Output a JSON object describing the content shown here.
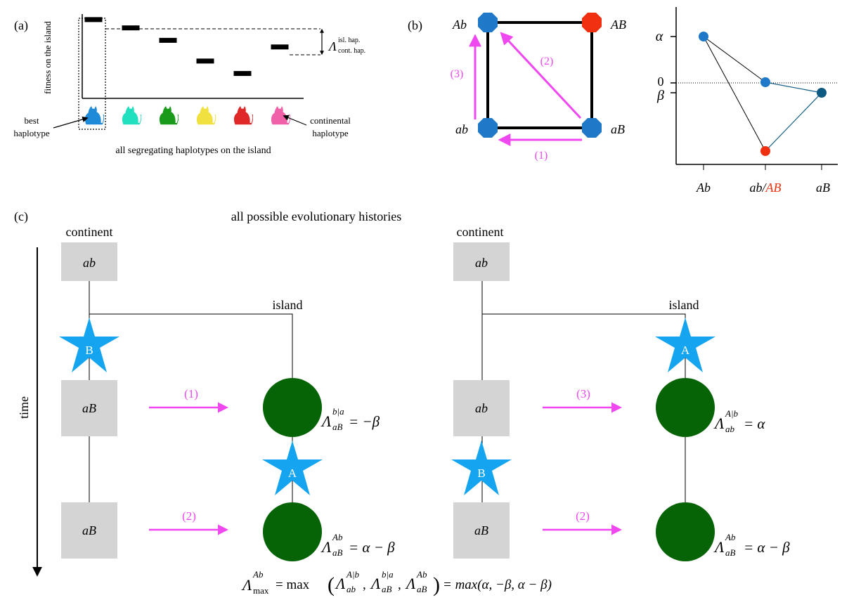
{
  "colors": {
    "blue": "#1f78c8",
    "darkblue": "#0f5a82",
    "red": "#f03010",
    "magenta": "#f048f0",
    "green": "#066406",
    "star": "#14a4f0",
    "gray": "#d4d4d4",
    "black": "#000000"
  },
  "panel_a": {
    "label": "(a)",
    "y_axis": "fitness on the island",
    "x_axis": "all segregating haplotypes on the island",
    "best_label": "best haplotype",
    "continental_label": "continental haplotype",
    "lambda_sym": "Λ",
    "lambda_sup": "isl. hap.",
    "lambda_sub": "cont. hap.",
    "bars": [
      {
        "fitness": 0.95
      },
      {
        "fitness": 0.85
      },
      {
        "fitness": 0.7
      },
      {
        "fitness": 0.45
      },
      {
        "fitness": 0.3
      },
      {
        "fitness": 0.62
      }
    ],
    "cats": [
      "#1e8ad8",
      "#20e0c0",
      "#1a9a1a",
      "#f0e040",
      "#e02828",
      "#f060a8"
    ]
  },
  "panel_b": {
    "label": "(b)",
    "nodes": {
      "Ab": "Ab",
      "AB": "AB",
      "ab": "ab",
      "aB": "aB"
    },
    "steps": {
      "s1": "(1)",
      "s2": "(2)",
      "s3": "(3)"
    },
    "y_labels": {
      "alpha": "α",
      "zero": "0",
      "beta": "β"
    },
    "x_labels": {
      "Ab": "Ab",
      "mid_ab": "ab/",
      "mid_AB": "AB",
      "aB": "aB"
    }
  },
  "panel_c": {
    "label": "(c)",
    "title": "all possible evolutionary histories",
    "time_label": "time",
    "continent": "continent",
    "island": "island",
    "left": {
      "box_top": "ab",
      "star_top": "B",
      "box_mid": "aB",
      "box_bot": "aB",
      "arrow_mid": "(1)",
      "arrow_bot": "(2)",
      "star_island": "A",
      "lambda_mid": {
        "base": "Λ",
        "sub": "aB",
        "sup": "b|a",
        "rhs": "= −β"
      },
      "lambda_bot": {
        "base": "Λ",
        "sub": "aB",
        "sup": "Ab",
        "rhs": "= α − β"
      }
    },
    "right": {
      "box_top": "ab",
      "star_island": "A",
      "box_mid": "ab",
      "box_bot": "aB",
      "arrow_mid": "(3)",
      "arrow_bot": "(2)",
      "star_cont": "B",
      "lambda_mid": {
        "base": "Λ",
        "sub": "ab",
        "sup": "A|b",
        "rhs": "= α"
      },
      "lambda_bot": {
        "base": "Λ",
        "sub": "aB",
        "sup": "Ab",
        "rhs": "= α − β"
      }
    },
    "formula": {
      "lhs_sub": "max",
      "lhs_sup": "Ab",
      "eq": "= max",
      "t1_sub": "ab",
      "t1_sup": "A|b",
      "t2_sub": "aB",
      "t2_sup": "b|a",
      "t3_sub": "aB",
      "t3_sup": "Ab",
      "rhs": "= max(α, −β, α − β)"
    }
  }
}
